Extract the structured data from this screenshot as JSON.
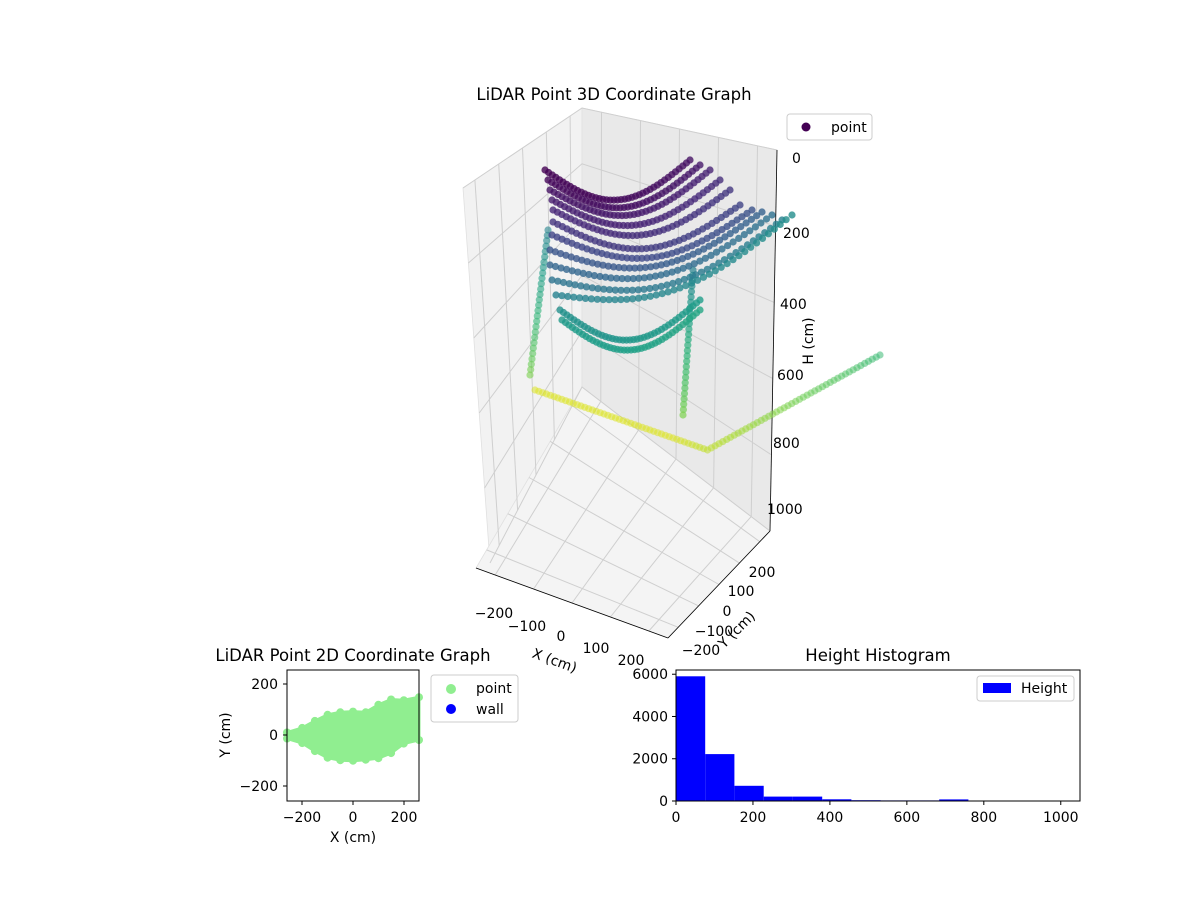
{
  "colors": {
    "viridis_dark": "#440154",
    "viridis_blue": "#3b528b",
    "viridis_teal": "#21918c",
    "viridis_green": "#5ec962",
    "viridis_yellow": "#fde725",
    "scatter2d_point": "#90ee90",
    "scatter2d_wall": "#0000ff",
    "histogram_bar": "#0000ff",
    "pane_back": "#f2f2f2",
    "pane_side": "#ebebeb",
    "grid": "#d3d3d3"
  },
  "chart_data": [
    {
      "type": "scatter",
      "projection": "3d",
      "title": "LiDAR Point 3D Coordinate Graph",
      "xlabel": "X (cm)",
      "ylabel": "Y (cm)",
      "zlabel": "H (cm)",
      "x_ticks": [
        "−200",
        "−100",
        "0",
        "100",
        "200"
      ],
      "y_ticks": [
        "−200",
        "−100",
        "0",
        "100",
        "200"
      ],
      "z_ticks": [
        "0",
        "200",
        "400",
        "600",
        "800",
        "1000"
      ],
      "z_inverted": true,
      "colormap": "viridis",
      "legend": [
        "point"
      ],
      "legend_position": "upper-right",
      "grid": true,
      "series": [
        {
          "description": "stacked arcs at upper levels",
          "arcs_h": [
            20,
            40,
            60,
            80,
            100,
            130,
            160,
            190,
            220,
            250,
            280,
            310,
            350,
            390,
            430
          ]
        },
        {
          "description": "large ground-level curve",
          "h": [
            800,
            780,
            700,
            600,
            520
          ]
        }
      ]
    },
    {
      "type": "scatter",
      "title": "LiDAR Point 2D Coordinate Graph",
      "xlabel": "X (cm)",
      "ylabel": "Y (cm)",
      "xlim": [
        -260,
        260
      ],
      "ylim": [
        -260,
        260
      ],
      "x_ticks": [
        "−200",
        "0",
        "200"
      ],
      "y_ticks": [
        "−200",
        "0",
        "200"
      ],
      "legend": [
        "point",
        "wall"
      ],
      "legend_position": "outside-right",
      "series": [
        {
          "name": "point",
          "envelope_x": [
            -260,
            -200,
            -150,
            -100,
            -50,
            0,
            50,
            100,
            150,
            200,
            260
          ],
          "envelope_y_top": [
            12,
            30,
            58,
            82,
            92,
            95,
            92,
            122,
            143,
            140,
            152
          ],
          "envelope_y_bottom": [
            -12,
            -30,
            -62,
            -88,
            -98,
            -100,
            -96,
            -90,
            -70,
            -32,
            -18
          ]
        },
        {
          "name": "wall",
          "x": [],
          "y": []
        }
      ]
    },
    {
      "type": "bar",
      "title": "Height Histogram",
      "xlim": [
        0,
        1050
      ],
      "ylim": [
        0,
        6200
      ],
      "x_ticks": [
        "0",
        "200",
        "400",
        "600",
        "800",
        "1000"
      ],
      "y_ticks": [
        "0",
        "2000",
        "4000",
        "6000"
      ],
      "bin_edges": [
        0,
        76,
        152,
        228,
        304,
        380,
        456,
        532,
        608,
        684,
        760,
        836,
        912,
        988
      ],
      "values": [
        5900,
        2220,
        720,
        210,
        210,
        80,
        40,
        30,
        30,
        75,
        10,
        5,
        5
      ],
      "legend": [
        "Height"
      ],
      "legend_position": "upper-right"
    }
  ]
}
